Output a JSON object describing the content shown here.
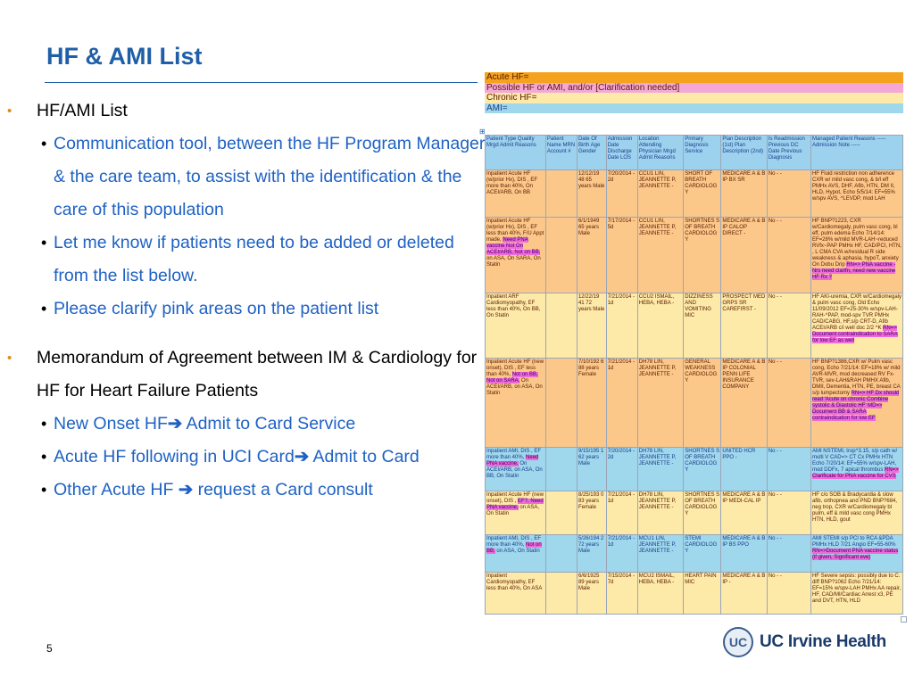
{
  "slide": {
    "title": "HF & AMI List",
    "page_number": "5",
    "bullets": [
      {
        "text": "HF/AMI List",
        "sub": [
          "Communication tool, between the HF Program Manager & the care team, to assist with the identification & the care of this population",
          "Let me know if patients need to be added or deleted from the list below.",
          "Please clarify pink areas on the patient list"
        ]
      },
      {
        "text": "Memorandum of Agreement between IM & Cardiology for HF for Heart Failure Patients",
        "sub": [
          {
            "before": "New Onset HF",
            "arrow": "➔",
            "after": " Admit to Card Service"
          },
          {
            "before": "Acute HF following in UCI Card",
            "arrow": "➔",
            "after": " Admit to Card"
          },
          {
            "before": "Other Acute HF ",
            "arrow": "➔",
            "after": " request a Card consult"
          }
        ]
      }
    ],
    "logo_text": "UC Irvine Health",
    "logo_seal": "UC"
  },
  "legend": [
    {
      "text": "Acute HF=",
      "color": "#f5a31e"
    },
    {
      "text": "Possible HF or AMI, and/or [Clarification needed]",
      "color": "#f5a8d6"
    },
    {
      "text": "Chronic HF=",
      "color": "#fde9a8"
    },
    {
      "text": "AMI=",
      "color": "#9fd7ec"
    }
  ],
  "table_marker": "⊞",
  "table": {
    "headers": [
      "Patient Type Quality Mrgd Admit Reasons",
      "Patient Name MRN Account #",
      "Date Of Birth Age Gender",
      "Admission Date Discharge Date LOS",
      "Location Attending Physician Mrgd Admit Reasons",
      "Primary Diagnosis Service",
      "Plan Description (1st) Plan Description (2nd)",
      "Is Readmission Previous DC Date Previous Diagnosis",
      "Managed Patient Reasons ----- Admission Note -----"
    ],
    "rows": [
      {
        "style": "orange",
        "type": "Inpatient Acute HF (w/prior Hx), DIS , EF more than 40%, On ACEI/ARB, On BB",
        "highlight": "",
        "type_after": "",
        "name": "",
        "dob": "12/12/19 48 65 years Male",
        "adm": "7/20/2014 - 2d",
        "loc": "CCU1 LIN, JEANNETTE P, JEANNETTE -",
        "dx": "SHORT OF BREATH CARDIOLOG Y",
        "plan": "MEDICARE A & B IP BX SR",
        "readm": "No - -",
        "notes": "HF Fluid restriction non adherence CXR w/ mild vasc cong, & b/l eff PMHx AVS, DHF, Afib, HTN, DM II, HLD, Hypot, Echo 5/5/14: EF=55% w/spv AVS, ^LEVDP, mod LAH",
        "notes_hl": ""
      },
      {
        "style": "orange",
        "type": "Inpatient Acute HF (w/prior Hx), DIS , EF less than 40%, F/U Appt made,",
        "highlight": "Need PNA vaccine Not On ACEI/ARB, Not on BB,",
        "type_after": "on ASA, On SARA, On Statin",
        "name": "",
        "dob": "6/1/1949 65 years Male",
        "adm": "7/17/2014 - 5d",
        "loc": "CCU1 LIN, JEANNETTE P, JEANNETTE -",
        "dx": "SHORTNES S OF BREATH CARDIOLOG Y",
        "plan": "MEDICARE A & B IP CALOP DIRECT -",
        "readm": "No - -",
        "notes": "HF BNP?1223, CXR w/Cardiomegaly, pulm vasc cong, bl eff, pulm edema Echo 7/14/14: EF=28% w/mild MVR-LAH~reduced RVfx~PAP PMHx HF, CAD/PCI, HTN, , L CMA CVA w/residual R side weakness & aphasia, hypoT, anxiety On Dobu Drip",
        "notes_hl": "RN=> PNA vaccine - Nrs need clarifn, need new vaccine HF Rx ?"
      },
      {
        "style": "yellow",
        "type": "Inpatient ARF Cardiomyopathy, EF less than 40%, On BB, On Statin",
        "highlight": "",
        "type_after": "",
        "name": "",
        "dob": "12/22/19 41 72 years Male",
        "adm": "7/21/2014 - 1d",
        "loc": "CCU2 ISMAIL, HEBA, HEBA -",
        "dx": "DIZZINESS AND VOMITING MIC",
        "plan": "PROSPECT MED GRPS SR CAREFIRST -",
        "readm": "No - -",
        "notes": "HF AKI-uremia, CXR w/Cardiomegaly & pulm vasc cong, Old Echo 11/09/2012 EF=25-30% w/spv-LAH-RAH-^PAP, mod-spv TVR PMHx CAD/CABG, HF,s/p CRT-D, Afib ACEI/ARB c/i well doc 2/2 ^K",
        "notes_hl": "RN=> Document contraindication to SARA for low EF as well"
      },
      {
        "style": "orange",
        "type": "Inpatient Acute HF (new onset), DIS , EF less than 40%,",
        "highlight": "Not on BB, Not on SARA,",
        "type_after": "On ACEI/ARB, on ASA, On Statin",
        "name": "",
        "dob": "7/10/192 6 88 years Female",
        "adm": "7/21/2014 - 1d",
        "loc": "DH78 LIN, JEANNETTE P, JEANNETTE -",
        "dx": "GENERAL WEAKNESS CARDIOLOG Y",
        "plan": "MEDICARE A & B IP COLONIAL PENN LIFE INSURANCE COMPANY",
        "readm": "No - -",
        "notes": "HF BNP?1386,CXR w/ Pulm vasc cong, Echo 7/21/14: EF=18% w/ mild AVR-MVR, mod decreased RV Fx-TVR, sev-LAH&RAH PMHX Afib, DMII, Dementia, HTN, PE, breast CA s/p lumpectomy",
        "notes_hl": "RN=> HF Dx should read 'Acute on chronic Combine systolic & Diastolic HF' MD=> Document BB & SARA contraindication for low EF"
      },
      {
        "style": "blue",
        "type": "Inpatient AMI, DIS , EF more than 40%,",
        "highlight": "Need PNA vaccine,",
        "type_after": "On ACEI/ARB, on ASA, On BB, On Statin",
        "name": "",
        "dob": "9/15/195 1 62 years Male",
        "adm": "7/20/2014 - 2d",
        "loc": "DH78 LIN, JEANNETTE P, JEANNETTE -",
        "dx": "SHORTNES S OF BREATH CARDIOLOG Y",
        "plan": "UNITED HCR PPO -",
        "readm": "No - -",
        "notes": "AMI NSTEMI, trop^3.15, s/p cath w/ multi V CAD=> CT Cx PMHx HTN Echo 7/20/14: EF=55% w/spv-LAH, mod DDFx, 7 apical thrombus",
        "notes_hl": "RN=> Clarificate for PNA vaccine for CVS"
      },
      {
        "style": "yellow",
        "type": "Inpatient Acute HF (new onset), DIS ,",
        "highlight": "EF?, Need PNA vaccine,",
        "type_after": "on ASA, On Statin",
        "name": "",
        "dob": "8/25/193 0 83 years Female",
        "adm": "7/21/2014 - 1d",
        "loc": "DH78 LIN, JEANNETTE P, JEANNETTE -",
        "dx": "SHORTNES S OF BREATH CARDIOLOG Y",
        "plan": "MEDICARE A & B IP MEDI-CAL IP",
        "readm": "No - -",
        "notes": "HF c/o SOB & Bradycardia & slow afib, orthopnea and PND BNP?684, neg trop, CXR w/Cardiomegaly bl pulm, eff & mild vasc cong PMHx HTN, HLD, gout",
        "notes_hl": ""
      },
      {
        "style": "blue",
        "type": "Inpatient AMI, DIS , EF more than 40%,",
        "highlight": "Not on BB,",
        "type_after": "on ASA, On Statin",
        "name": "",
        "dob": "5/26/194 2 72 years Male",
        "adm": "7/21/2014 - 1d",
        "loc": "MCU1 LIN, JEANNETTE P, JEANNETTE -",
        "dx": "STEMI CARDIOLOG Y",
        "plan": "MEDICARE A & B IP BS PPO",
        "readm": "No - -",
        "notes": "AMI STEMI s/p PCI to RCA &PDA PMHx HLD 7/21 Angio EF=55-60%",
        "notes_hl": "RN=>Document PNA vaccine status (if given, Significant eve)"
      },
      {
        "style": "yellow",
        "type": "Inpatient Cardiomyopathy, EF less than 40%, On ASA",
        "highlight": "",
        "type_after": "",
        "name": "",
        "dob": "6/6/1925 89 years Male",
        "adm": "7/15/2014 - 7d",
        "loc": "MCU2 ISMAIL, HEBA, HEBA -",
        "dx": "HEART PAIN MIC",
        "plan": "MEDICARE A & B IP -",
        "readm": "No - -",
        "notes": "HF Severe sepsis: possibly due to C. diff BNP?1062 Echo 7/21/14: EF=15% w/spv-LAH PMHx AA repair, HF, CAD/MI/Cardiac Arrest x3, PE and DVT, HTN, HLD",
        "notes_hl": ""
      }
    ]
  }
}
